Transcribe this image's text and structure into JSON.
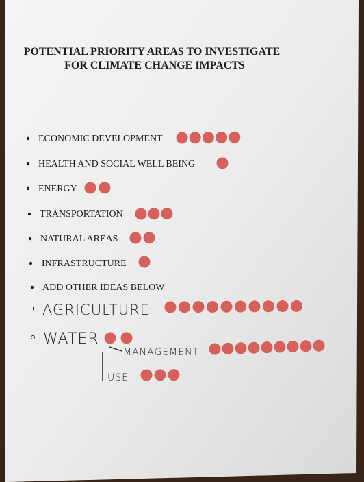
{
  "title_lines": [
    "POTENTIAL PRIORITY AREAS TO INVESTIGATE",
    "FOR CLIMATE CHANGE IMPACTS"
  ],
  "items": [
    {
      "label": "ECONOMIC DEVELOPMENT",
      "votes": 5
    },
    {
      "label": "HEALTH AND SOCIAL WELL BEING",
      "votes": 1
    },
    {
      "label": "ENERGY",
      "votes": 2
    },
    {
      "label": "TRANSPORTATION",
      "votes": 3
    },
    {
      "label": "NATURAL AREAS",
      "votes": 2
    },
    {
      "label": "INFRASTRUCTURE",
      "votes": 1
    },
    {
      "label": "ADD OTHER IDEAS BELOW"
    }
  ],
  "handwritten": [
    {
      "label": "AGRICULTURE",
      "votes": 10
    },
    {
      "label": "WATER",
      "votes": 2,
      "subitems": [
        {
          "label": "MANAGEMENT",
          "votes": 9
        },
        {
          "label": "USE",
          "votes": 3
        }
      ]
    }
  ]
}
